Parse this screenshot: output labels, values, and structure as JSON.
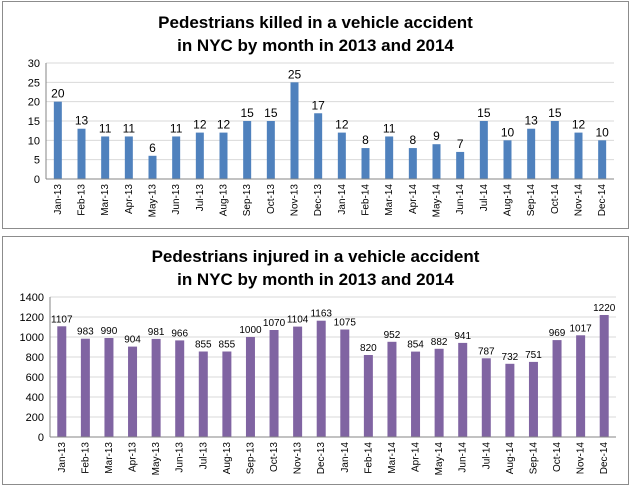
{
  "colors": {
    "killed_bar": "#4f81bd",
    "injured_bar": "#8064a2",
    "grid": "#d9d9d9",
    "axis": "#868686"
  },
  "chart_data": [
    {
      "type": "bar",
      "title_line1": "Pedestrians killed in a vehicle accident",
      "title_line2": "in NYC by month in 2013 and 2014",
      "categories": [
        "Jan-13",
        "Feb-13",
        "Mar-13",
        "Apr-13",
        "May-13",
        "Jun-13",
        "Jul-13",
        "Aug-13",
        "Sep-13",
        "Oct-13",
        "Nov-13",
        "Dec-13",
        "Jan-14",
        "Feb-14",
        "Mar-14",
        "Apr-14",
        "May-14",
        "Jun-14",
        "Jul-14",
        "Aug-14",
        "Sep-14",
        "Oct-14",
        "Nov-14",
        "Dec-14"
      ],
      "values": [
        20,
        13,
        11,
        11,
        6,
        11,
        12,
        12,
        15,
        15,
        25,
        17,
        12,
        8,
        11,
        8,
        9,
        7,
        15,
        10,
        13,
        15,
        12,
        10
      ],
      "ylim": [
        0,
        30
      ],
      "yticks": [
        0,
        5,
        10,
        15,
        20,
        25,
        30
      ],
      "grid": true,
      "data_labels": true
    },
    {
      "type": "bar",
      "title_line1": "Pedestrians injured in a vehicle accident",
      "title_line2": "in NYC by month in 2013 and 2014",
      "categories": [
        "Jan-13",
        "Feb-13",
        "Mar-13",
        "Apr-13",
        "May-13",
        "Jun-13",
        "Jul-13",
        "Aug-13",
        "Sep-13",
        "Oct-13",
        "Nov-13",
        "Dec-13",
        "Jan-14",
        "Feb-14",
        "Mar-14",
        "Apr-14",
        "May-14",
        "Jun-14",
        "Jul-14",
        "Aug-14",
        "Sep-14",
        "Oct-14",
        "Nov-14",
        "Dec-14"
      ],
      "values": [
        1107,
        983,
        990,
        904,
        981,
        966,
        855,
        855,
        1000,
        1070,
        1104,
        1163,
        1075,
        820,
        952,
        854,
        882,
        941,
        787,
        732,
        751,
        969,
        1017,
        1220
      ],
      "ylim": [
        0,
        1400
      ],
      "yticks": [
        0,
        200,
        400,
        600,
        800,
        1000,
        1200,
        1400
      ],
      "grid": true,
      "data_labels": true
    }
  ]
}
